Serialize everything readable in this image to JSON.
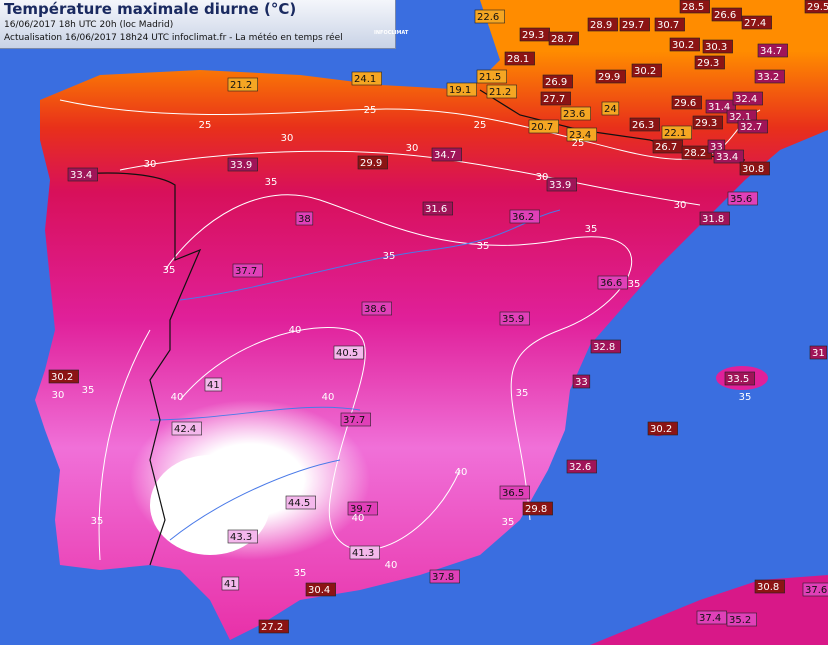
{
  "header": {
    "title": "Température maximale diurne (°C)",
    "line1": "16/06/2017  18h UTC  20h (loc Madrid)",
    "line2": "Actualisation 16/06/2017 18h24 UTC   infoclimat.fr - La météo en temps réel",
    "logo": "INFOCLIMAT"
  },
  "stations": [
    "22.6",
    "28.5",
    "28.9",
    "29.7",
    "30.7",
    "26.6",
    "27.4",
    "29.5",
    "29.3",
    "28.7",
    "30.2",
    "30.3",
    "34.7",
    "28.1",
    "29.9",
    "30.2",
    "29.3",
    "33.2",
    "26.9",
    "21.2",
    "24.1",
    "21.5",
    "19.1",
    "21.2",
    "27.7",
    "23.6",
    "24",
    "29.6",
    "31.4",
    "32.4",
    "20.7",
    "23.4",
    "26.3",
    "22.1",
    "29.3",
    "32.1",
    "32.7",
    "26.7",
    "28.2",
    "33",
    "33.4",
    "33.9",
    "29.9",
    "34.7",
    "33.4",
    "33.9",
    "30.8",
    "35.6",
    "31.6",
    "36.2",
    "31.8",
    "38",
    "37.7",
    "36.6",
    "38.6",
    "35.9",
    "32.8",
    "40.5",
    "31",
    "30.2",
    "41",
    "33",
    "33.5",
    "42.4",
    "37.7",
    "30.2",
    "32.6",
    "36.5",
    "44.5",
    "39.7",
    "29.8",
    "43.3",
    "41.3",
    "37.8",
    "41",
    "30.4",
    "30.8",
    "37.6",
    "37.4",
    "35.2",
    "27.2"
  ],
  "isotherms": [
    "25",
    "25",
    "25",
    "25",
    "30",
    "30",
    "30",
    "30",
    "30",
    "30",
    "35",
    "35",
    "35",
    "35",
    "35",
    "35",
    "35",
    "35",
    "35",
    "35",
    "35",
    "35",
    "40",
    "40",
    "40",
    "40",
    "40",
    "40"
  ]
}
